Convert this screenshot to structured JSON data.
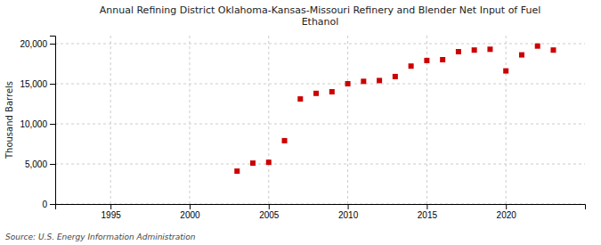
{
  "chart_data": {
    "type": "scatter",
    "title": "Annual Refining District Oklahoma-Kansas-Missouri Refinery and Blender Net Input of Fuel\nEthanol",
    "ylabel": "Thousand Barrels",
    "source": "Source: U.S. Energy Information Administration",
    "x": [
      2003,
      2004,
      2005,
      2006,
      2007,
      2008,
      2009,
      2010,
      2011,
      2012,
      2013,
      2014,
      2015,
      2016,
      2017,
      2018,
      2019,
      2020,
      2021,
      2022,
      2023
    ],
    "values": [
      4100,
      5100,
      5200,
      7900,
      13100,
      13800,
      14000,
      15000,
      15300,
      15400,
      15900,
      17200,
      17900,
      18000,
      19000,
      19200,
      19300,
      16600,
      18600,
      19700,
      19200
    ],
    "color": "#cc0000",
    "marker": "square",
    "xlim": [
      1991.5,
      2025
    ],
    "ylim": [
      0,
      21000
    ],
    "xticks": [
      1995,
      2000,
      2005,
      2010,
      2015,
      2020
    ],
    "yticks": [
      0,
      {
        "value": 5000,
        "label": "5,000"
      },
      {
        "value": 10000,
        "label": "10,000"
      },
      {
        "value": 15000,
        "label": "15,000"
      },
      {
        "value": 20000,
        "label": "20,000"
      }
    ],
    "grid": true
  }
}
